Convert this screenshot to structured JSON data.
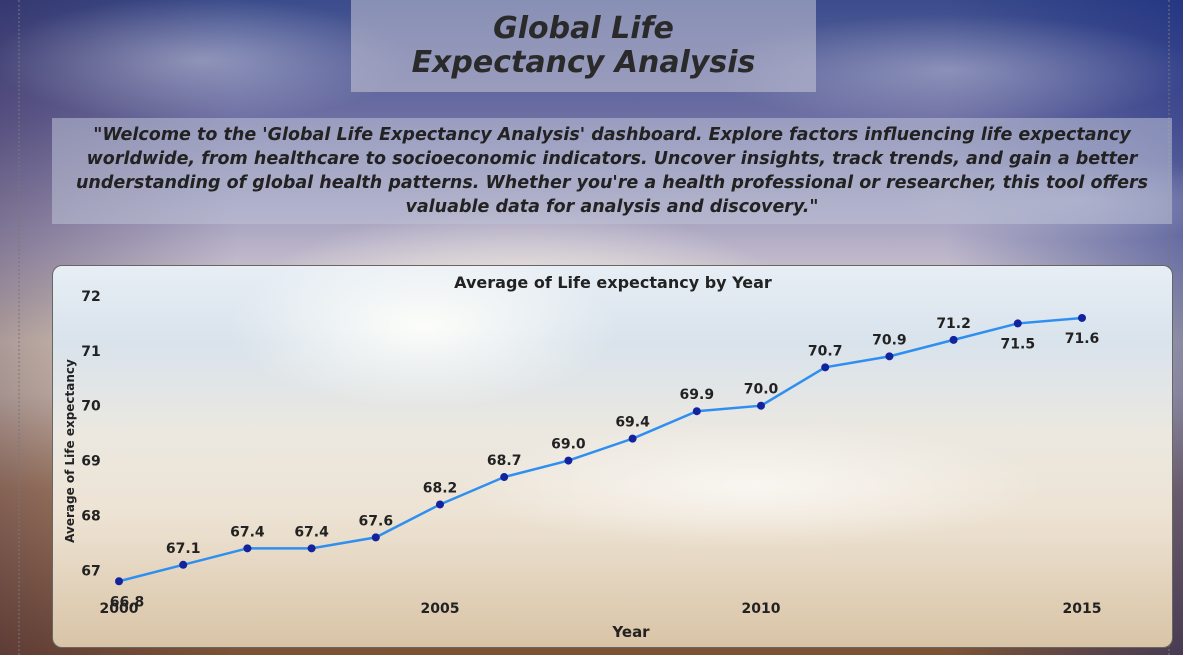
{
  "header": {
    "title": "Global Life Expectancy Analysis"
  },
  "intro": {
    "text": "\"Welcome to the 'Global Life Expectancy Analysis' dashboard. Explore factors influencing life expectancy worldwide, from healthcare to socioeconomic indicators. Uncover insights, track trends, and gain a better understanding of global health patterns. Whether you're a health professional or researcher, this tool offers valuable data for analysis and discovery.\""
  },
  "chart_data": {
    "type": "line",
    "title": "Average of Life expectancy by Year",
    "xlabel": "Year",
    "ylabel": "Average of Life expectancy",
    "x": [
      2000,
      2001,
      2002,
      2003,
      2004,
      2005,
      2006,
      2007,
      2008,
      2009,
      2010,
      2011,
      2012,
      2013,
      2014,
      2015
    ],
    "values": [
      66.8,
      67.1,
      67.4,
      67.4,
      67.6,
      68.2,
      68.7,
      69.0,
      69.4,
      69.9,
      70.0,
      70.7,
      70.9,
      71.2,
      71.5,
      71.6
    ],
    "data_labels": [
      "66.8",
      "67.1",
      "67.4",
      "67.4",
      "67.6",
      "68.2",
      "68.7",
      "69.0",
      "69.4",
      "69.9",
      "70.0",
      "70.7",
      "70.9",
      "71.2",
      "71.5",
      "71.6"
    ],
    "xticks": [
      2000,
      2005,
      2010,
      2015
    ],
    "yticks": [
      67,
      68,
      69,
      70,
      71,
      72
    ],
    "xlim": [
      2000,
      2015
    ],
    "ylim": [
      66.75,
      72
    ],
    "grid": false,
    "legend": "none",
    "line_color": "#2f8ff0",
    "marker_color": "#12239e"
  }
}
